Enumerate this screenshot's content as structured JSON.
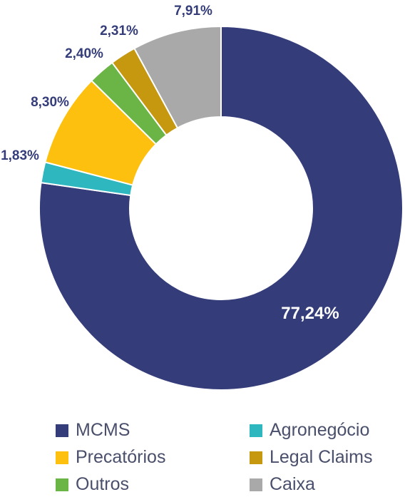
{
  "chart_data": {
    "type": "pie",
    "subtype": "donut",
    "slices": [
      {
        "label": "MCMS",
        "value": 77.24,
        "value_label": "77,24%",
        "color": "#343d7a"
      },
      {
        "label": "Agronegócio",
        "value": 1.83,
        "value_label": "1,83%",
        "color": "#2fb7bf"
      },
      {
        "label": "Precatórios",
        "value": 8.3,
        "value_label": "8,30%",
        "color": "#fec00f"
      },
      {
        "label": "Outros",
        "value": 2.4,
        "value_label": "2,40%",
        "color": "#6ab545"
      },
      {
        "label": "Legal Claims",
        "value": 2.31,
        "value_label": "2,31%",
        "color": "#c59810"
      },
      {
        "label": "Caixa",
        "value": 7.91,
        "value_label": "7,91%",
        "color": "#a9a9a9"
      }
    ],
    "legend": {
      "position": "bottom",
      "columns": 2
    },
    "label_color": "#343d7a",
    "inner_label_color": "#ffffff"
  }
}
